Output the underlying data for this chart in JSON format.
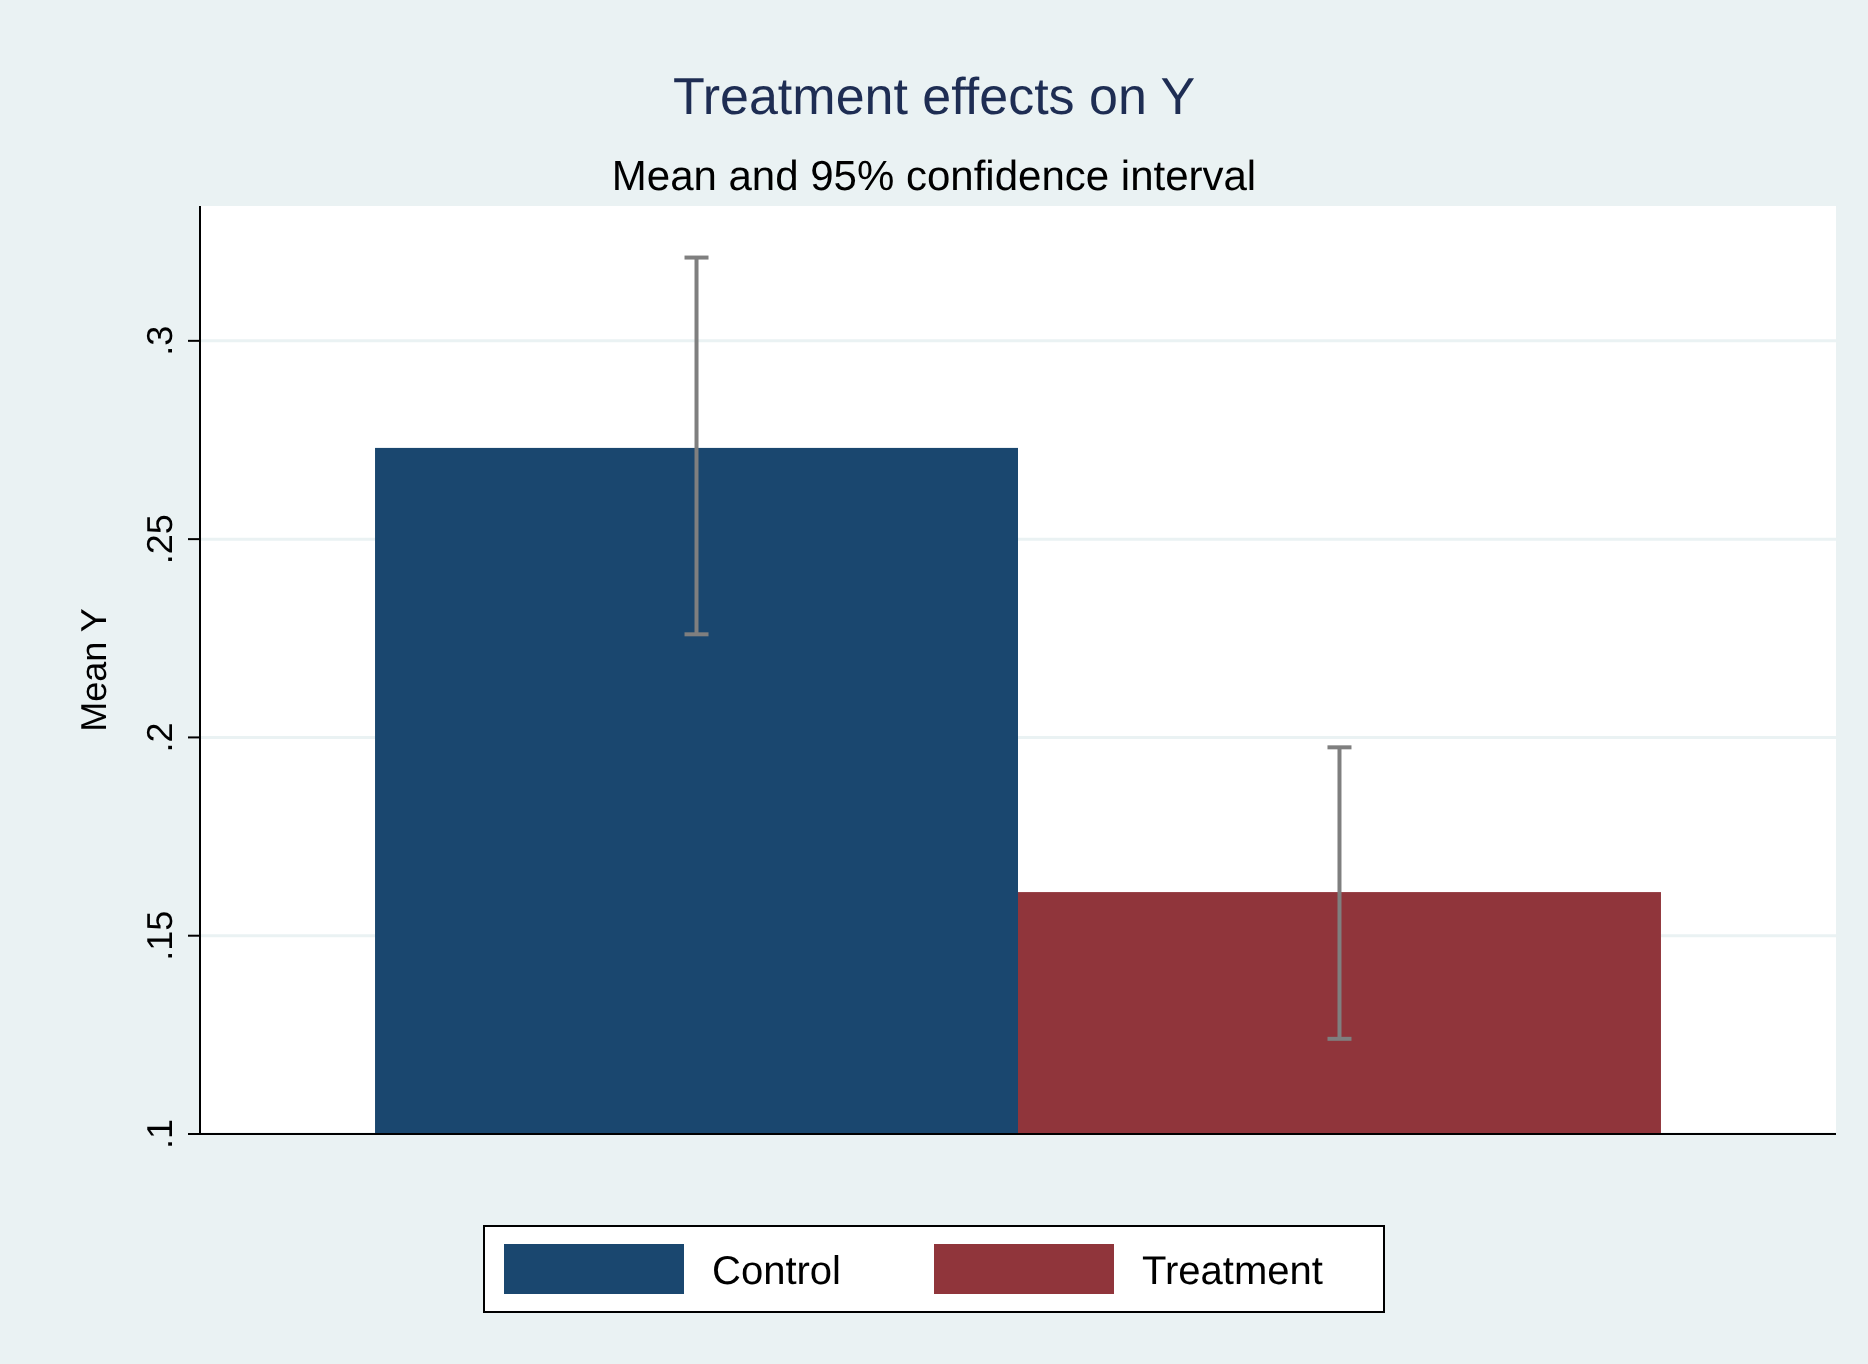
{
  "chart_data": {
    "type": "bar",
    "title": "Treatment effects on Y",
    "subtitle": "Mean and 95% confidence interval",
    "ylabel": "Mean Y",
    "categories": [
      null
    ],
    "series": [
      {
        "name": "Control",
        "color": "#1a476f",
        "values": [
          0.273
        ],
        "errors": [
          [
            0.226,
            0.321
          ]
        ]
      },
      {
        "name": "Treatment",
        "color": "#90353b",
        "values": [
          0.161
        ],
        "errors": [
          [
            0.124,
            0.1975
          ]
        ]
      }
    ],
    "ylim": [
      0.1,
      0.334
    ],
    "yticks": [
      {
        "value": 0.1,
        "label": ".1"
      },
      {
        "value": 0.15,
        "label": ".15"
      },
      {
        "value": 0.2,
        "label": ".2"
      },
      {
        "value": 0.25,
        "label": ".25"
      },
      {
        "value": 0.3,
        "label": ".3"
      }
    ],
    "grid": "y",
    "legend": "bottom"
  }
}
